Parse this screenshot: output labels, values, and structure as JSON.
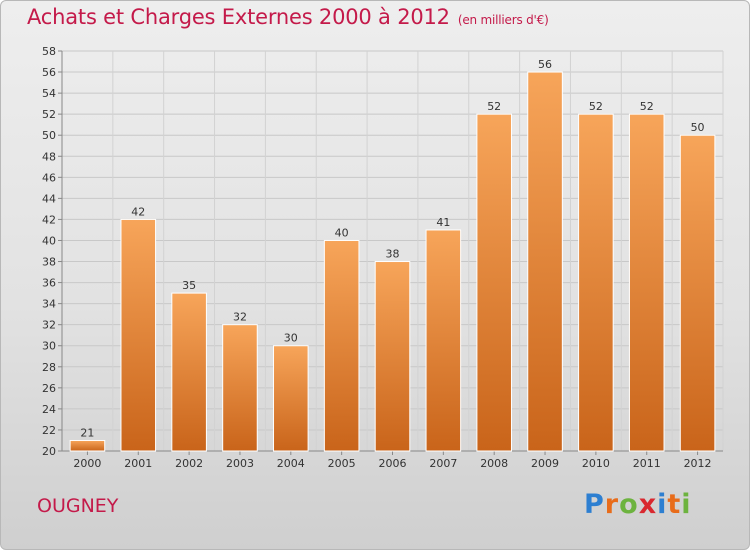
{
  "title": "Achats et Charges Externes 2000 à 2012",
  "unit": "(en milliers d'€)",
  "commune": "OUGNEY",
  "logo": {
    "letters": [
      "P",
      "r",
      "o",
      "x",
      "i",
      "t",
      "i"
    ],
    "colors": [
      "#2d7fd1",
      "#e86c1a",
      "#6db33f",
      "#d9282f",
      "#2d7fd1",
      "#e86c1a",
      "#6db33f"
    ]
  },
  "chart_data": {
    "type": "bar",
    "title": "Achats et Charges Externes 2000 à 2012",
    "subtitle": "(en milliers d'€)",
    "categories": [
      "2000",
      "2001",
      "2002",
      "2003",
      "2004",
      "2005",
      "2006",
      "2007",
      "2008",
      "2009",
      "2010",
      "2011",
      "2012"
    ],
    "values": [
      21,
      42,
      35,
      32,
      30,
      40,
      38,
      41,
      52,
      56,
      52,
      52,
      50
    ],
    "ylim": [
      20,
      58
    ],
    "ytick_step": 2,
    "grid": true,
    "bar_color": "#f0913a"
  }
}
